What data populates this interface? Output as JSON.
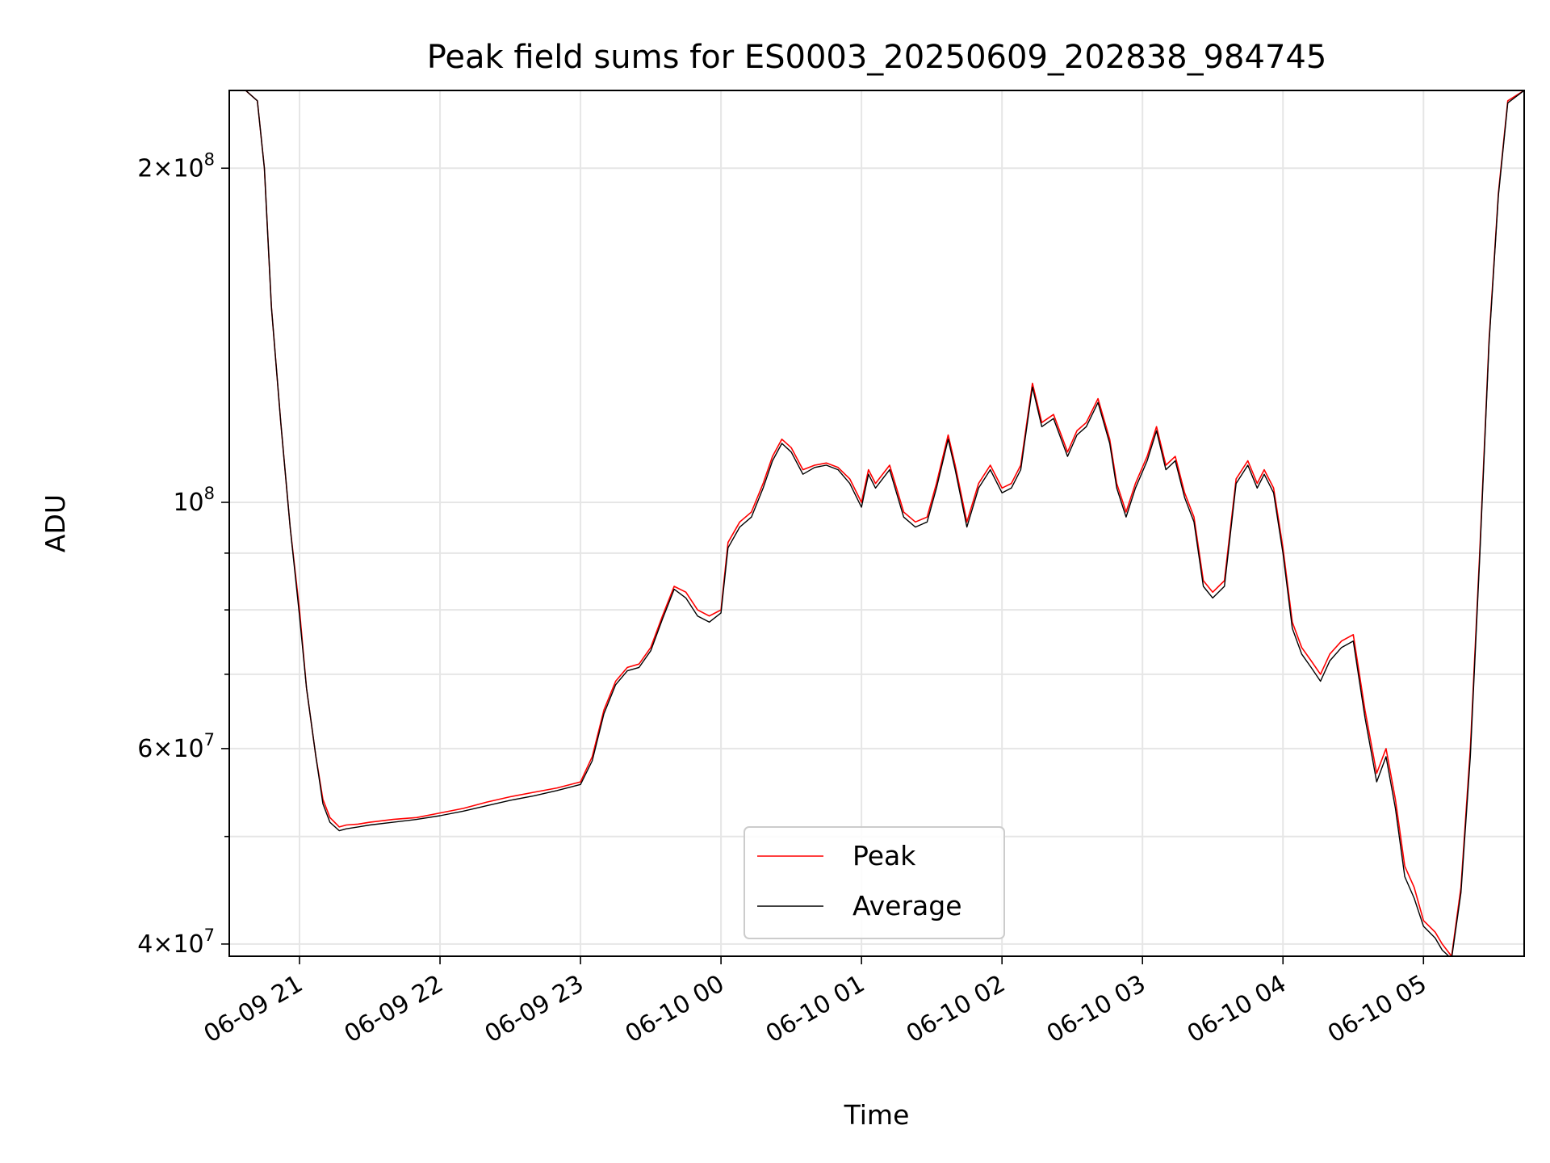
{
  "chart_data": {
    "type": "line",
    "title": "Peak field sums for ES0003_20250609_202838_984745",
    "xlabel": "Time",
    "ylabel": "ADU",
    "yscale": "log",
    "xlim": [
      "2025-06-09 20:30",
      "2025-06-10 05:43"
    ],
    "ylim": [
      39000000,
      235000000
    ],
    "grid": true,
    "legend_position": "lower-center",
    "x_tick_labels": [
      "06-09 21",
      "06-09 22",
      "06-09 23",
      "06-10 00",
      "06-10 01",
      "06-10 02",
      "06-10 03",
      "06-10 04",
      "06-10 05"
    ],
    "x_ticks": [
      "2025-06-09 21:00",
      "2025-06-09 22:00",
      "2025-06-09 23:00",
      "2025-06-10 00:00",
      "2025-06-10 01:00",
      "2025-06-10 02:00",
      "2025-06-10 03:00",
      "2025-06-10 04:00",
      "2025-06-10 05:00"
    ],
    "y_ticks": [
      {
        "value": 40000000,
        "mantissa": "4",
        "exponent": "7"
      },
      {
        "value": 60000000,
        "mantissa": "6",
        "exponent": "7"
      },
      {
        "value": 100000000,
        "mantissa": "",
        "exponent": "8"
      },
      {
        "value": 200000000,
        "mantissa": "2",
        "exponent": "8"
      }
    ],
    "y_minor_ticks": [
      50000000,
      70000000,
      80000000,
      90000000
    ],
    "x": [
      "2025-06-09 20:30",
      "2025-06-09 20:37",
      "2025-06-09 20:42",
      "2025-06-09 20:45",
      "2025-06-09 20:48",
      "2025-06-09 20:52",
      "2025-06-09 20:56",
      "2025-06-09 21:00",
      "2025-06-09 21:03",
      "2025-06-09 21:07",
      "2025-06-09 21:10",
      "2025-06-09 21:13",
      "2025-06-09 21:17",
      "2025-06-09 21:20",
      "2025-06-09 21:25",
      "2025-06-09 21:30",
      "2025-06-09 21:40",
      "2025-06-09 21:50",
      "2025-06-09 22:00",
      "2025-06-09 22:10",
      "2025-06-09 22:20",
      "2025-06-09 22:30",
      "2025-06-09 22:40",
      "2025-06-09 22:50",
      "2025-06-09 23:00",
      "2025-06-09 23:05",
      "2025-06-09 23:10",
      "2025-06-09 23:15",
      "2025-06-09 23:20",
      "2025-06-09 23:25",
      "2025-06-09 23:30",
      "2025-06-09 23:35",
      "2025-06-09 23:40",
      "2025-06-09 23:45",
      "2025-06-09 23:50",
      "2025-06-09 23:55",
      "2025-06-10 00:00",
      "2025-06-10 00:03",
      "2025-06-10 00:08",
      "2025-06-10 00:13",
      "2025-06-10 00:18",
      "2025-06-10 00:22",
      "2025-06-10 00:26",
      "2025-06-10 00:30",
      "2025-06-10 00:35",
      "2025-06-10 00:40",
      "2025-06-10 00:45",
      "2025-06-10 00:50",
      "2025-06-10 00:55",
      "2025-06-10 01:00",
      "2025-06-10 01:03",
      "2025-06-10 01:06",
      "2025-06-10 01:12",
      "2025-06-10 01:18",
      "2025-06-10 01:23",
      "2025-06-10 01:28",
      "2025-06-10 01:32",
      "2025-06-10 01:37",
      "2025-06-10 01:40",
      "2025-06-10 01:45",
      "2025-06-10 01:50",
      "2025-06-10 01:55",
      "2025-06-10 02:00",
      "2025-06-10 02:04",
      "2025-06-10 02:08",
      "2025-06-10 02:13",
      "2025-06-10 02:17",
      "2025-06-10 02:22",
      "2025-06-10 02:28",
      "2025-06-10 02:32",
      "2025-06-10 02:36",
      "2025-06-10 02:41",
      "2025-06-10 02:46",
      "2025-06-10 02:49",
      "2025-06-10 02:53",
      "2025-06-10 02:57",
      "2025-06-10 03:02",
      "2025-06-10 03:06",
      "2025-06-10 03:10",
      "2025-06-10 03:14",
      "2025-06-10 03:18",
      "2025-06-10 03:22",
      "2025-06-10 03:26",
      "2025-06-10 03:30",
      "2025-06-10 03:35",
      "2025-06-10 03:40",
      "2025-06-10 03:45",
      "2025-06-10 03:49",
      "2025-06-10 03:52",
      "2025-06-10 03:56",
      "2025-06-10 04:00",
      "2025-06-10 04:04",
      "2025-06-10 04:08",
      "2025-06-10 04:12",
      "2025-06-10 04:16",
      "2025-06-10 04:20",
      "2025-06-10 04:25",
      "2025-06-10 04:30",
      "2025-06-10 04:35",
      "2025-06-10 04:40",
      "2025-06-10 04:44",
      "2025-06-10 04:48",
      "2025-06-10 04:52",
      "2025-06-10 04:56",
      "2025-06-10 05:00",
      "2025-06-10 05:05",
      "2025-06-10 05:08",
      "2025-06-10 05:12",
      "2025-06-10 05:16",
      "2025-06-10 05:20",
      "2025-06-10 05:24",
      "2025-06-10 05:28",
      "2025-06-10 05:32",
      "2025-06-10 05:36",
      "2025-06-10 05:43"
    ],
    "series": [
      {
        "name": "Peak",
        "color": "#ff0000",
        "values": [
          235000000,
          235000000,
          230000000,
          200000000,
          150000000,
          118000000,
          95000000,
          80000000,
          68000000,
          59000000,
          54000000,
          52000000,
          51000000,
          51200000,
          51300000,
          51500000,
          51800000,
          52000000,
          52500000,
          53000000,
          53700000,
          54300000,
          54800000,
          55300000,
          56000000,
          59000000,
          65000000,
          69000000,
          71000000,
          71500000,
          74000000,
          79000000,
          84000000,
          83000000,
          80000000,
          79000000,
          80000000,
          92000000,
          96000000,
          98000000,
          104000000,
          110000000,
          114000000,
          112000000,
          107000000,
          108000000,
          108500000,
          107500000,
          105000000,
          100000000,
          107000000,
          104000000,
          108000000,
          98000000,
          96000000,
          97000000,
          104000000,
          115000000,
          108000000,
          96000000,
          104000000,
          108000000,
          103000000,
          104000000,
          108000000,
          128000000,
          118000000,
          120000000,
          111000000,
          116000000,
          118000000,
          124000000,
          114000000,
          104000000,
          98000000,
          104000000,
          110000000,
          117000000,
          108000000,
          110000000,
          102000000,
          97000000,
          85000000,
          83000000,
          85000000,
          105000000,
          109000000,
          104000000,
          107000000,
          103000000,
          91000000,
          78000000,
          74000000,
          72000000,
          70000000,
          73000000,
          75000000,
          76000000,
          65000000,
          57000000,
          60000000,
          54000000,
          47000000,
          45000000,
          42000000,
          41000000,
          40000000,
          39000000,
          45000000,
          60000000,
          90000000,
          140000000,
          190000000,
          230000000,
          235000000
        ]
      },
      {
        "name": "Average",
        "color": "#000000",
        "values": [
          235000000,
          235000000,
          230000000,
          200000000,
          150000000,
          118000000,
          95000000,
          79000000,
          68000000,
          59000000,
          53500000,
          51500000,
          50600000,
          50800000,
          51000000,
          51200000,
          51500000,
          51800000,
          52200000,
          52700000,
          53300000,
          53900000,
          54400000,
          55000000,
          55700000,
          58500000,
          64500000,
          68500000,
          70500000,
          71000000,
          73500000,
          78500000,
          83500000,
          82000000,
          79000000,
          78000000,
          79500000,
          91000000,
          95000000,
          97000000,
          103000000,
          109000000,
          113000000,
          111000000,
          106000000,
          107500000,
          108000000,
          107000000,
          104000000,
          99000000,
          106000000,
          103000000,
          107000000,
          97000000,
          95000000,
          96000000,
          103000000,
          114000000,
          107000000,
          95000000,
          103000000,
          107000000,
          102000000,
          103000000,
          107000000,
          127000000,
          117000000,
          119000000,
          110000000,
          115000000,
          117000000,
          123000000,
          113000000,
          103000000,
          97000000,
          103000000,
          109000000,
          116000000,
          107000000,
          109000000,
          101000000,
          96000000,
          84000000,
          82000000,
          84000000,
          104000000,
          108000000,
          103000000,
          106000000,
          102000000,
          90000000,
          77000000,
          73000000,
          71000000,
          69000000,
          72000000,
          74000000,
          75000000,
          64000000,
          56000000,
          59000000,
          53000000,
          46000000,
          44000000,
          41500000,
          40500000,
          39500000,
          38800000,
          44500000,
          59000000,
          89000000,
          139000000,
          189000000,
          229000000,
          235000000
        ]
      }
    ]
  }
}
